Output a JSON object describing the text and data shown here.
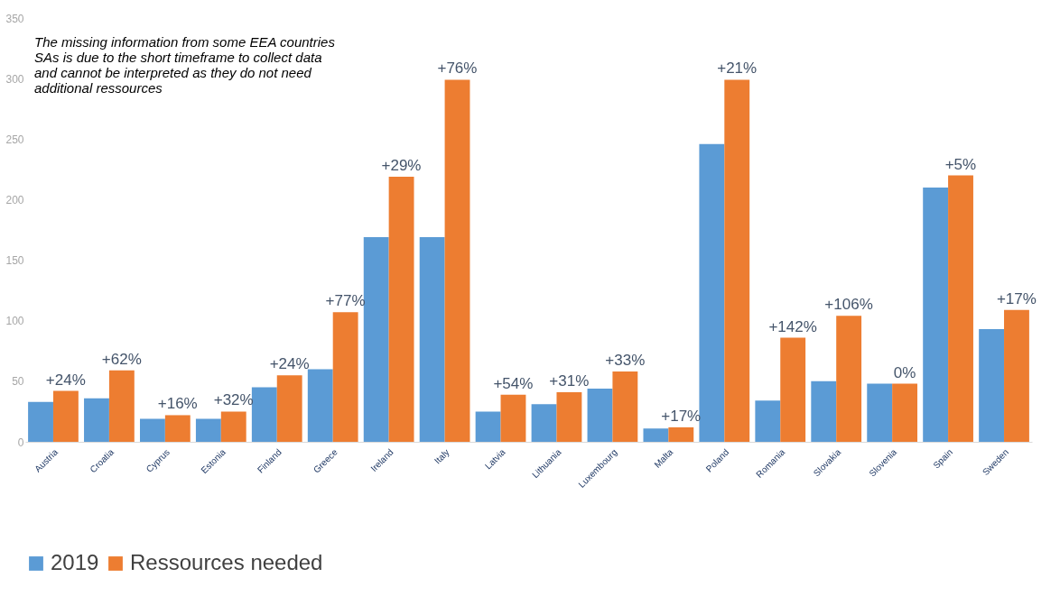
{
  "chart_data": {
    "type": "bar",
    "categories": [
      "Austria",
      "Croatia",
      "Cyprus",
      "Estonia",
      "Finland",
      "Greece",
      "Ireland",
      "Italy",
      "Latvia",
      "Lithuania",
      "Luxembourg",
      "Malta",
      "Poland",
      "Romania",
      "Slovakia",
      "Slovenia",
      "Spain",
      "Sweden"
    ],
    "series": [
      {
        "name": "2019",
        "color": "#5b9bd5",
        "values": [
          33,
          36,
          19,
          19,
          45,
          60,
          169,
          169,
          25,
          31,
          44,
          11,
          246,
          34,
          50,
          48,
          210,
          93
        ]
      },
      {
        "name": "Ressources needed",
        "color": "#ed7d31",
        "values": [
          42,
          59,
          22,
          25,
          55,
          107,
          219,
          299,
          39,
          41,
          58,
          12,
          299,
          86,
          104,
          48,
          220,
          109
        ]
      }
    ],
    "ylim": [
      0,
      350
    ],
    "yticks": [
      0,
      50,
      100,
      150,
      200,
      250,
      300,
      350
    ],
    "legend": "bottom",
    "annotations": [
      "The missing information from some EEA countries SAs is  due to the short timeframe to collect data and cannot  be interpreted as they do not need additional  ressources",
      {
        "text": "+24%",
        "x": "Austria",
        "y": 42
      },
      {
        "text": "+62%",
        "x": "Croatia",
        "y": 59
      },
      {
        "text": "+16%",
        "x": "Cyprus",
        "y": 22
      },
      {
        "text": "+32%",
        "x": "Estonia",
        "y": 25
      },
      {
        "text": "+24%",
        "x": "Finland",
        "y": 55
      },
      {
        "text": "+77%",
        "x": "Greece",
        "y": 107
      },
      {
        "text": "+29%",
        "x": "Ireland",
        "y": 219
      },
      {
        "text": "+76%",
        "x": "Italy",
        "y": 299
      },
      {
        "text": "+54%",
        "x": "Latvia",
        "y": 39
      },
      {
        "text": "+31%",
        "x": "Lithuania",
        "y": 41
      },
      {
        "text": "+33%",
        "x": "Luxembourg",
        "y": 58
      },
      {
        "text": "+17%",
        "x": "Malta",
        "y": 12
      },
      {
        "text": "+21%",
        "x": "Poland",
        "y": 299
      },
      {
        "text": "+142%",
        "x": "Romania",
        "y": 86
      },
      {
        "text": "+106%",
        "x": "Slovakia",
        "y": 104
      },
      {
        "text": "0%",
        "x": "Slovenia",
        "y": 48
      },
      {
        "text": "+5%",
        "x": "Spain",
        "y": 220
      },
      {
        "text": "+17%",
        "x": "Sweden",
        "y": 109
      }
    ]
  }
}
